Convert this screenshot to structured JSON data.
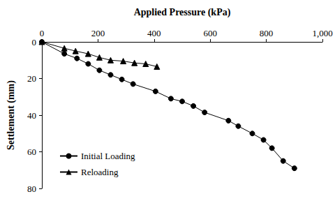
{
  "chart_data": {
    "type": "line",
    "x_label": "Applied Pressure (kPa)",
    "y_label": "Settlement (mm)",
    "xlim": [
      0,
      1000
    ],
    "xticks": [
      0,
      200,
      400,
      600,
      800,
      1000
    ],
    "ylim": [
      0,
      80
    ],
    "yticks": [
      0,
      20,
      40,
      60,
      80
    ],
    "grid": false,
    "legend": "lower left",
    "series": [
      {
        "name": "Initial Loading",
        "color": "#000000",
        "marker": "circle",
        "line_style": "solid",
        "x": [
          0,
          80,
          125,
          165,
          205,
          245,
          285,
          325,
          405,
          460,
          500,
          540,
          580,
          665,
          700,
          750,
          790,
          820,
          860,
          900
        ],
        "values": [
          0,
          6.5,
          9,
          12,
          15.5,
          18,
          20.5,
          23,
          27,
          31,
          32.5,
          35,
          38.5,
          43,
          46,
          50,
          53.5,
          58,
          65,
          69
        ]
      },
      {
        "name": "Reloading",
        "color": "#000000",
        "marker": "triangle",
        "line_style": "solid",
        "x": [
          0,
          80,
          120,
          165,
          205,
          245,
          290,
          330,
          370,
          410
        ],
        "values": [
          0,
          3.5,
          5,
          6.5,
          8.5,
          10,
          10.5,
          11.5,
          12,
          13.5
        ]
      }
    ]
  }
}
